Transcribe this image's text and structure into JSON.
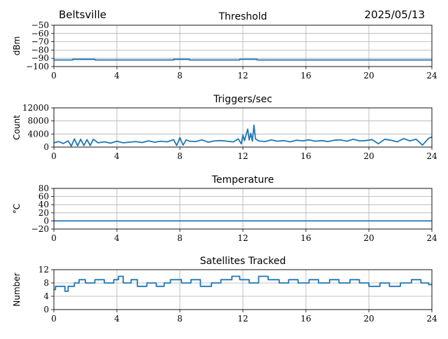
{
  "header": {
    "location": "Beltsville",
    "date": "2025/05/13"
  },
  "chart_data": [
    {
      "type": "line",
      "title": "Threshold",
      "xlabel": "",
      "ylabel": "dBm",
      "xlim": [
        0,
        24
      ],
      "ylim": [
        -100,
        -50
      ],
      "xticks": [
        0,
        4,
        8,
        12,
        16,
        20,
        24
      ],
      "yticks": [
        -100,
        -90,
        -80,
        -70,
        -60,
        -50
      ],
      "grid": true,
      "color": "#1f77b4",
      "series": [
        {
          "x": [
            0,
            1.2,
            1.2,
            2.6,
            2.6,
            7.6,
            7.6,
            8.6,
            8.6,
            11.8,
            11.8,
            12.9,
            12.9,
            24
          ],
          "y": [
            -92,
            -92,
            -91.3,
            -91.3,
            -92,
            -92,
            -91.3,
            -91.3,
            -92,
            -92,
            -91.2,
            -91.2,
            -92,
            -92
          ]
        }
      ]
    },
    {
      "type": "line",
      "title": "Triggers/sec",
      "xlabel": "",
      "ylabel": "Count",
      "xlim": [
        0,
        24
      ],
      "ylim": [
        0,
        12000
      ],
      "xticks": [
        0,
        4,
        8,
        12,
        16,
        20,
        24
      ],
      "yticks": [
        0,
        4000,
        8000,
        12000
      ],
      "grid": true,
      "color": "#1f77b4",
      "series": [
        {
          "x": [
            0,
            0.3,
            0.6,
            0.9,
            1.1,
            1.3,
            1.5,
            1.7,
            1.9,
            2.1,
            2.3,
            2.5,
            2.8,
            3.2,
            3.6,
            4.0,
            4.4,
            4.8,
            5.2,
            5.6,
            6.0,
            6.4,
            6.8,
            7.2,
            7.6,
            7.8,
            8.0,
            8.2,
            8.4,
            8.6,
            9.0,
            9.4,
            9.8,
            10.2,
            10.6,
            11.0,
            11.4,
            11.7,
            11.9,
            12.0,
            12.1,
            12.3,
            12.4,
            12.5,
            12.6,
            12.7,
            12.8,
            13.0,
            13.4,
            13.8,
            14.2,
            14.6,
            15.0,
            15.4,
            15.8,
            16.2,
            16.6,
            17.0,
            17.4,
            17.8,
            18.2,
            18.6,
            19.0,
            19.4,
            19.8,
            20.2,
            20.6,
            21.0,
            21.4,
            21.8,
            22.2,
            22.6,
            23.0,
            23.4,
            23.8,
            24.0
          ],
          "y": [
            1300,
            1700,
            1100,
            1900,
            300,
            2500,
            400,
            2400,
            500,
            2300,
            500,
            2400,
            1300,
            1600,
            1200,
            1800,
            1300,
            1500,
            1700,
            1400,
            1900,
            1500,
            1800,
            1600,
            2300,
            500,
            2900,
            600,
            2200,
            1800,
            1700,
            2200,
            1500,
            1900,
            2000,
            1800,
            1600,
            2500,
            1000,
            3700,
            2000,
            5500,
            2200,
            4200,
            1800,
            6700,
            2500,
            1900,
            1700,
            2200,
            1800,
            2000,
            1600,
            2100,
            1900,
            2200,
            1800,
            2000,
            1700,
            2100,
            2200,
            1800,
            2400,
            1900,
            2000,
            2300,
            1000,
            2400,
            2100,
            1600,
            2600,
            1900,
            2400,
            600,
            2700,
            3100
          ]
        }
      ]
    },
    {
      "type": "line",
      "title": "Temperature",
      "xlabel": "",
      "ylabel": "°C",
      "xlim": [
        0,
        24
      ],
      "ylim": [
        -20,
        80
      ],
      "xticks": [
        0,
        4,
        8,
        12,
        16,
        20,
        24
      ],
      "yticks": [
        -20,
        0,
        20,
        40,
        60,
        80
      ],
      "grid": true,
      "color": "#1f77b4",
      "series": [
        {
          "x": [
            0,
            24
          ],
          "y": [
            0,
            0
          ]
        }
      ]
    },
    {
      "type": "line",
      "title": "Satellites Tracked",
      "xlabel": "",
      "ylabel": "Number",
      "xlim": [
        0,
        24
      ],
      "ylim": [
        0,
        12
      ],
      "xticks": [
        0,
        4,
        8,
        12,
        16,
        20,
        24
      ],
      "yticks": [
        0,
        4,
        8,
        12
      ],
      "grid": true,
      "color": "#1f77b4",
      "series": [
        {
          "x": [
            0,
            0.1,
            0.1,
            0.7,
            0.7,
            0.9,
            0.9,
            1.3,
            1.3,
            1.6,
            1.6,
            2.0,
            2.0,
            2.6,
            2.6,
            3.2,
            3.2,
            3.8,
            3.8,
            4.1,
            4.1,
            4.4,
            4.4,
            4.9,
            4.9,
            5.3,
            5.3,
            5.9,
            5.9,
            6.5,
            6.5,
            7.0,
            7.0,
            7.4,
            7.4,
            8.1,
            8.1,
            8.7,
            8.7,
            9.3,
            9.3,
            10.0,
            10.0,
            10.6,
            10.6,
            11.3,
            11.3,
            11.8,
            11.8,
            12.4,
            12.4,
            13.0,
            13.0,
            13.6,
            13.6,
            14.3,
            14.3,
            14.9,
            14.9,
            15.5,
            15.5,
            16.2,
            16.2,
            16.8,
            16.8,
            17.5,
            17.5,
            18.1,
            18.1,
            18.8,
            18.8,
            19.4,
            19.4,
            20.0,
            20.0,
            20.7,
            20.7,
            21.3,
            21.3,
            22.0,
            22.0,
            22.7,
            22.7,
            23.3,
            23.3,
            23.8,
            23.8,
            24.0
          ],
          "y": [
            6,
            6,
            7,
            7,
            5.5,
            5.5,
            7,
            7,
            8,
            8,
            9,
            9,
            8,
            8,
            9,
            9,
            8,
            8,
            9,
            9,
            10,
            10,
            8,
            8,
            9,
            9,
            7,
            7,
            8,
            8,
            7,
            7,
            8,
            8,
            9,
            9,
            8,
            8,
            9,
            9,
            7,
            7,
            8,
            8,
            9,
            9,
            10,
            10,
            9,
            9,
            8,
            8,
            10,
            10,
            9,
            9,
            8,
            8,
            9,
            9,
            8,
            8,
            9,
            9,
            8,
            8,
            9,
            9,
            8,
            8,
            9,
            9,
            8,
            8,
            7,
            7,
            8,
            8,
            7,
            7,
            8,
            8,
            9,
            9,
            8,
            8,
            7.5,
            7.5
          ]
        }
      ]
    }
  ]
}
